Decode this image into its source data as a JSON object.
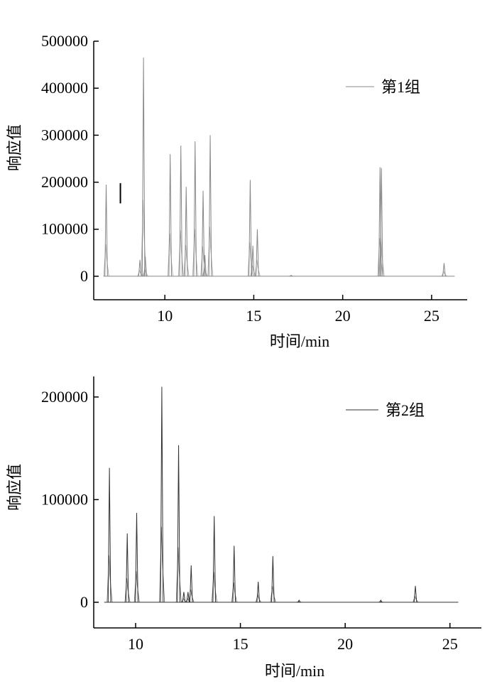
{
  "chart_data": [
    {
      "type": "line",
      "xlabel": "时间/min",
      "ylabel": "响应值",
      "xlim": [
        6.0,
        27.0
      ],
      "ylim": [
        -50000,
        500000
      ],
      "x_ticks": [
        10,
        15,
        20,
        25
      ],
      "x_tick_labels": [
        "10",
        "15",
        "20",
        "25"
      ],
      "y_ticks": [
        0,
        100000,
        200000,
        300000,
        400000,
        500000
      ],
      "y_tick_labels": [
        "0",
        "100000",
        "200000",
        "300000",
        "400000",
        "500000"
      ],
      "grid": false,
      "legend_position": "top-right",
      "series": [
        {
          "name": "第1组",
          "color": "#888888",
          "baseline_x": [
            6.55,
            26.3
          ],
          "peaks": [
            {
              "x": 6.7,
              "y": 195000
            },
            {
              "x": 8.6,
              "y": 35000
            },
            {
              "x": 8.8,
              "y": 465000
            },
            {
              "x": 8.9,
              "y": 42000
            },
            {
              "x": 10.3,
              "y": 260000
            },
            {
              "x": 10.9,
              "y": 278000
            },
            {
              "x": 11.2,
              "y": 190000
            },
            {
              "x": 11.7,
              "y": 287000
            },
            {
              "x": 12.15,
              "y": 182000
            },
            {
              "x": 12.25,
              "y": 45000
            },
            {
              "x": 12.55,
              "y": 300000
            },
            {
              "x": 14.8,
              "y": 205000
            },
            {
              "x": 14.95,
              "y": 65000
            },
            {
              "x": 15.2,
              "y": 100000
            },
            {
              "x": 17.1,
              "y": 2000
            },
            {
              "x": 22.1,
              "y": 232000
            },
            {
              "x": 22.18,
              "y": 230000
            },
            {
              "x": 25.7,
              "y": 28000
            }
          ],
          "marks": [
            {
              "x": 7.5,
              "y_from": 155000,
              "y_to": 198000
            }
          ]
        }
      ]
    },
    {
      "type": "line",
      "xlabel": "时间/min",
      "ylabel": "响应值",
      "xlim": [
        8.0,
        26.5
      ],
      "ylim": [
        -25000,
        220000
      ],
      "x_ticks": [
        10,
        15,
        20,
        25
      ],
      "x_tick_labels": [
        "10",
        "15",
        "20",
        "25"
      ],
      "y_ticks": [
        0,
        100000,
        200000
      ],
      "y_tick_labels": [
        "0",
        "100000",
        "200000"
      ],
      "grid": false,
      "legend_position": "top-right",
      "series": [
        {
          "name": "第2组",
          "color": "#333333",
          "baseline_x": [
            8.5,
            25.4
          ],
          "peaks": [
            {
              "x": 8.75,
              "y": 131000
            },
            {
              "x": 9.6,
              "y": 67000
            },
            {
              "x": 10.05,
              "y": 87000
            },
            {
              "x": 11.25,
              "y": 210000
            },
            {
              "x": 12.05,
              "y": 153000
            },
            {
              "x": 12.3,
              "y": 10000
            },
            {
              "x": 12.5,
              "y": 10000
            },
            {
              "x": 12.65,
              "y": 36000
            },
            {
              "x": 13.75,
              "y": 84000
            },
            {
              "x": 14.7,
              "y": 55000
            },
            {
              "x": 15.85,
              "y": 20000
            },
            {
              "x": 16.55,
              "y": 45000
            },
            {
              "x": 17.8,
              "y": 2000
            },
            {
              "x": 21.7,
              "y": 2000
            },
            {
              "x": 23.35,
              "y": 16000
            }
          ]
        }
      ]
    }
  ]
}
